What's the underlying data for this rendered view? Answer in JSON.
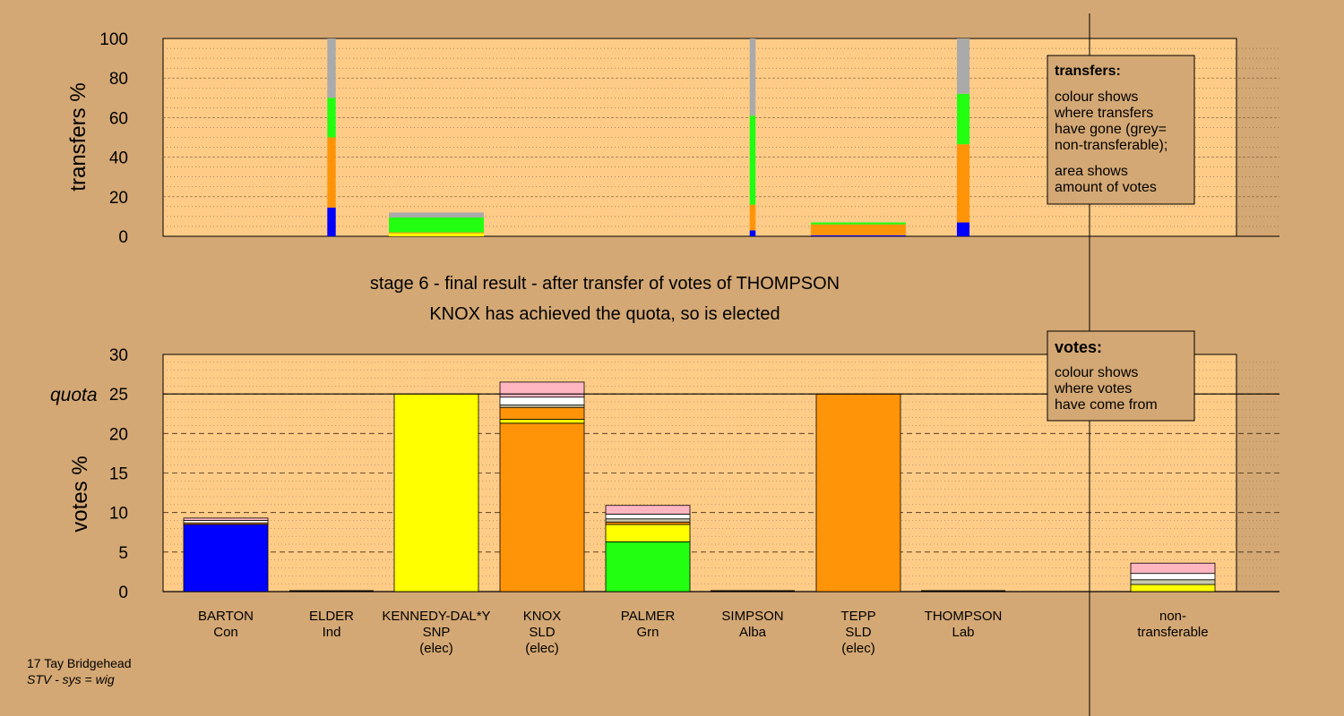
{
  "chart_data": [
    {
      "name": "transfers",
      "type": "bar",
      "ylabel": "transfers %",
      "ylim": [
        0,
        100
      ],
      "yticks": [
        0,
        20,
        40,
        60,
        80,
        100
      ],
      "legend": {
        "title": "transfers:",
        "lines": [
          "colour shows",
          "where transfers",
          "have gone (grey=",
          "non-transferable);",
          "area shows",
          "amount of votes"
        ]
      },
      "segments_from_bottom": [
        "BARTON",
        "KENNEDY-DAL*Y",
        "KNOX",
        "PALMER",
        "non-transferable"
      ],
      "bars": [
        {
          "column": "ELDER",
          "width_share": 0.1,
          "values": [
            14.5,
            0,
            35.5,
            20,
            30
          ]
        },
        {
          "column": "KENNEDY-DAL*Y",
          "width_share": 1.0,
          "values": [
            0,
            1.5,
            0.5,
            7.5,
            2.5
          ]
        },
        {
          "column": "SIMPSON",
          "width_share": 0.07,
          "values": [
            3,
            0,
            13,
            45,
            39
          ]
        },
        {
          "column": "TEPP",
          "width_share": 1.0,
          "values": [
            0.5,
            0,
            5.5,
            1,
            0
          ]
        },
        {
          "column": "THOMPSON",
          "width_share": 0.15,
          "values": [
            7,
            0,
            39.5,
            25.5,
            28
          ]
        }
      ]
    },
    {
      "name": "votes",
      "type": "bar",
      "stacked": true,
      "ylabel": "votes %",
      "ylim": [
        0,
        30
      ],
      "yticks": [
        0,
        5,
        10,
        15,
        20,
        25,
        30
      ],
      "quota": 25,
      "quota_label": "quota",
      "legend": {
        "title": "votes:",
        "lines": [
          "colour shows",
          "where votes",
          "have come from"
        ]
      },
      "categories": [
        {
          "name": "BARTON",
          "party": "Con",
          "status": ""
        },
        {
          "name": "ELDER",
          "party": "Ind",
          "status": ""
        },
        {
          "name": "KENNEDY-DAL*Y",
          "party": "SNP",
          "status": "(elec)"
        },
        {
          "name": "KNOX",
          "party": "SLD",
          "status": "(elec)"
        },
        {
          "name": "PALMER",
          "party": "Grn",
          "status": ""
        },
        {
          "name": "SIMPSON",
          "party": "Alba",
          "status": ""
        },
        {
          "name": "TEPP",
          "party": "SLD",
          "status": "(elec)"
        },
        {
          "name": "THOMPSON",
          "party": "Lab",
          "status": ""
        },
        {
          "name": "non-",
          "party": "transferable",
          "status": ""
        }
      ],
      "source_colors": {
        "Con": "#0000ff",
        "SNP": "#ffff00",
        "SLD": "#ff9408",
        "Grn": "#22ff11",
        "Alba": "#c8c8aa",
        "Ind": "#ffffff",
        "Lab": "#ffb6c1",
        "non_transferable": "#aaaaaa"
      },
      "stacks": [
        [
          {
            "src": "Con",
            "v": 8.5
          },
          {
            "src": "SLD",
            "v": 0.2
          },
          {
            "src": "Ind",
            "v": 0.3
          },
          {
            "src": "Lab",
            "v": 0.3
          }
        ],
        [],
        [
          {
            "src": "SNP",
            "v": 25.0
          }
        ],
        [
          {
            "src": "SLD",
            "v": 21.3
          },
          {
            "src": "SNP",
            "v": 0.5
          },
          {
            "src": "SLD",
            "v": 1.5
          },
          {
            "src": "Alba",
            "v": 0.3
          },
          {
            "src": "Ind",
            "v": 1.0
          },
          {
            "src": "Lab",
            "v": 1.9
          }
        ],
        [
          {
            "src": "Grn",
            "v": 6.3
          },
          {
            "src": "SNP",
            "v": 2.2
          },
          {
            "src": "SLD",
            "v": 0.3
          },
          {
            "src": "Alba",
            "v": 0.4
          },
          {
            "src": "Ind",
            "v": 0.6
          },
          {
            "src": "Lab",
            "v": 1.1
          }
        ],
        [],
        [
          {
            "src": "SLD",
            "v": 25.0
          }
        ],
        [],
        [
          {
            "src": "SNP",
            "v": 0.9
          },
          {
            "src": "Alba",
            "v": 0.6
          },
          {
            "src": "Ind",
            "v": 0.8
          },
          {
            "src": "Lab",
            "v": 1.3
          }
        ]
      ]
    }
  ],
  "headline": {
    "line1": "stage 6 - final result - after transfer of votes of THOMPSON",
    "line2": "KNOX has achieved the quota, so is elected"
  },
  "footer": {
    "line1": "17 Tay Bridgehead",
    "line2": "STV - sys = wig"
  },
  "colors": {
    "page_bg": "#d4a874",
    "plot_bg": "#ffcc88",
    "transfer_series": [
      "#0000ff",
      "#ffff00",
      "#ff9408",
      "#22ff11",
      "#aaaaaa"
    ]
  }
}
